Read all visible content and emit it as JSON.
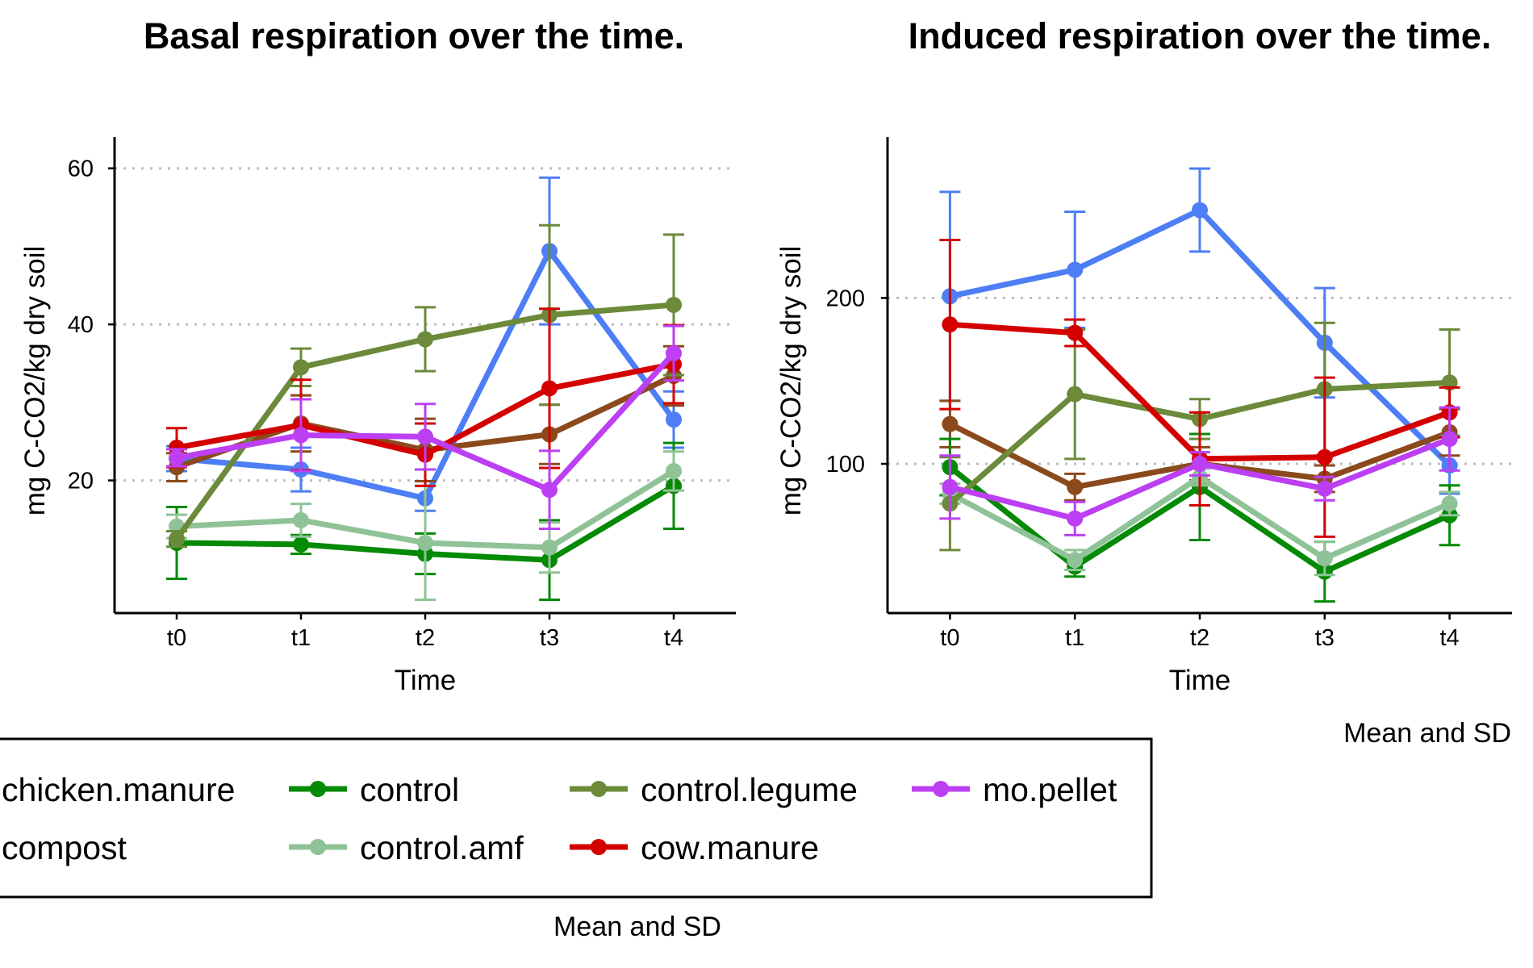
{
  "series_colors": {
    "chicken.manure": "#4d7ef5",
    "compost": "#8b4a1c",
    "control": "#058a05",
    "control.amf": "#8fc397",
    "control.legume": "#6b8a3a",
    "cow.manure": "#d40000",
    "mo.pellet": "#bc3ff3"
  },
  "chart_data": [
    {
      "type": "line",
      "title": "Basal respiration over the time.",
      "xlabel": "Time",
      "ylabel": "mg C-CO2/kg dry soil",
      "categories": [
        "t0",
        "t1",
        "t2",
        "t3",
        "t4"
      ],
      "ylim": [
        3,
        64
      ],
      "yticks": [
        20,
        40,
        60
      ],
      "grid": "horizontal dotted",
      "caption": "",
      "series": [
        {
          "name": "chicken.manure",
          "values": [
            22.8,
            21.4,
            17.7,
            49.4,
            27.8
          ],
          "sd": [
            1.6,
            2.8,
            1.6,
            9.4,
            3.6
          ]
        },
        {
          "name": "compost",
          "values": [
            21.7,
            27.3,
            23.9,
            25.9,
            33.4
          ],
          "sd": [
            1.8,
            3.6,
            4.0,
            3.8,
            3.8
          ]
        },
        {
          "name": "control",
          "values": [
            12.0,
            11.8,
            10.6,
            9.8,
            19.3
          ],
          "sd": [
            4.6,
            1.2,
            2.6,
            5.1,
            5.5
          ]
        },
        {
          "name": "control.amf",
          "values": [
            14.1,
            14.9,
            12.0,
            11.4,
            21.2
          ],
          "sd": [
            1.5,
            2.1,
            7.3,
            3.2,
            2.5
          ]
        },
        {
          "name": "control.legume",
          "values": [
            12.5,
            34.5,
            38.1,
            41.2,
            42.5
          ],
          "sd": [
            1.0,
            2.4,
            4.1,
            11.5,
            9.0
          ]
        },
        {
          "name": "cow.manure",
          "values": [
            24.2,
            27.1,
            23.3,
            31.8,
            34.9
          ],
          "sd": [
            2.5,
            5.8,
            4.0,
            10.2,
            5.0
          ]
        },
        {
          "name": "mo.pellet",
          "values": [
            22.9,
            25.8,
            25.6,
            18.8,
            36.3
          ],
          "sd": [
            1.1,
            4.6,
            4.2,
            5.0,
            3.5
          ]
        }
      ]
    },
    {
      "type": "line",
      "title": "Induced respiration over the time.",
      "xlabel": "Time",
      "ylabel": "mg C-CO2/kg dry soil",
      "categories": [
        "t0",
        "t1",
        "t2",
        "t3",
        "t4"
      ],
      "ylim": [
        10,
        297
      ],
      "yticks": [
        100,
        200
      ],
      "grid": "horizontal dotted",
      "caption": "Mean and SD",
      "series": [
        {
          "name": "chicken.manure",
          "values": [
            201,
            217,
            253,
            173,
            99
          ],
          "sd": [
            63,
            35,
            25,
            33,
            17
          ]
        },
        {
          "name": "compost",
          "values": [
            124,
            86,
            100,
            91,
            119
          ],
          "sd": [
            14,
            8,
            10,
            8,
            14
          ]
        },
        {
          "name": "control",
          "values": [
            98,
            38,
            86,
            35,
            69
          ],
          "sd": [
            17,
            6,
            32,
            18,
            18
          ]
        },
        {
          "name": "control.amf",
          "values": [
            82,
            42,
            92,
            43,
            76
          ],
          "sd": [
            6,
            6,
            5,
            10,
            7
          ]
        },
        {
          "name": "control.legume",
          "values": [
            76,
            142,
            127,
            145,
            149
          ],
          "sd": [
            28,
            39,
            12,
            40,
            32
          ]
        },
        {
          "name": "cow.manure",
          "values": [
            184,
            179,
            103,
            104,
            131
          ],
          "sd": [
            51,
            8,
            28,
            48,
            15
          ]
        },
        {
          "name": "mo.pellet",
          "values": [
            86,
            67,
            100,
            85,
            115
          ],
          "sd": [
            19,
            10,
            7,
            7,
            19
          ]
        }
      ]
    }
  ],
  "legend": {
    "placement": "bottom",
    "caption": "Mean and SD",
    "items": [
      "chicken.manure",
      "compost",
      "control",
      "control.amf",
      "control.legume",
      "cow.manure",
      "mo.pellet"
    ]
  }
}
